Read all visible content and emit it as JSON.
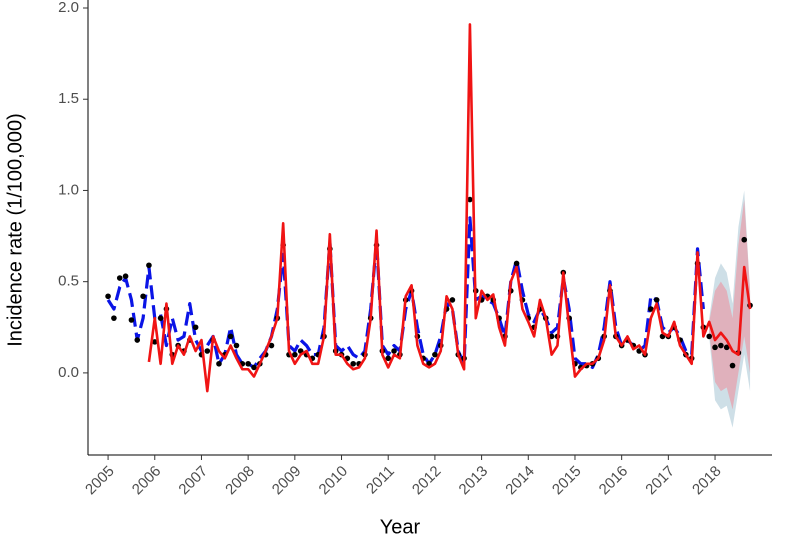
{
  "chart_data": {
    "type": "line",
    "x_label": "Year",
    "y_label": "Incidence rate (1/100,000)",
    "xlim": [
      2004.57,
      2019.22
    ],
    "ylim": [
      -0.45,
      2.0
    ],
    "xticks": [
      2005,
      2006,
      2007,
      2008,
      2009,
      2010,
      2011,
      2012,
      2013,
      2014,
      2015,
      2016,
      2017,
      2018
    ],
    "yticks": [
      {
        "value": 0,
        "label": "0.0"
      },
      {
        "value": 0.5,
        "label": "0.5"
      },
      {
        "value": 1,
        "label": "1.0"
      },
      {
        "value": 1.5,
        "label": "1.5"
      },
      {
        "value": 2,
        "label": "2.0"
      }
    ],
    "grid": false,
    "x": [
      2005,
      2005.125,
      2005.25,
      2005.375,
      2005.5,
      2005.625,
      2005.75,
      2005.875,
      2006,
      2006.125,
      2006.25,
      2006.375,
      2006.5,
      2006.625,
      2006.75,
      2006.875,
      2007,
      2007.125,
      2007.25,
      2007.375,
      2007.5,
      2007.625,
      2007.75,
      2007.875,
      2008,
      2008.125,
      2008.25,
      2008.375,
      2008.5,
      2008.625,
      2008.75,
      2008.875,
      2009,
      2009.125,
      2009.25,
      2009.375,
      2009.5,
      2009.625,
      2009.75,
      2009.875,
      2010,
      2010.125,
      2010.25,
      2010.375,
      2010.5,
      2010.625,
      2010.75,
      2010.875,
      2011,
      2011.125,
      2011.25,
      2011.375,
      2011.5,
      2011.625,
      2011.75,
      2011.875,
      2012,
      2012.125,
      2012.25,
      2012.375,
      2012.5,
      2012.625,
      2012.75,
      2012.875,
      2013,
      2013.125,
      2013.25,
      2013.375,
      2013.5,
      2013.625,
      2013.75,
      2013.875,
      2014,
      2014.125,
      2014.25,
      2014.375,
      2014.5,
      2014.625,
      2014.75,
      2014.875,
      2015,
      2015.125,
      2015.25,
      2015.375,
      2015.5,
      2015.625,
      2015.75,
      2015.875,
      2016,
      2016.125,
      2016.25,
      2016.375,
      2016.5,
      2016.625,
      2016.75,
      2016.875,
      2017,
      2017.125,
      2017.25,
      2017.375,
      2017.5,
      2017.625,
      2017.75,
      2017.875,
      2018,
      2018.125,
      2018.25,
      2018.375,
      2018.5,
      2018.625,
      2018.75
    ],
    "intervals": [
      {
        "color": "#c5d9e3",
        "x": [
          2017.875,
          2018,
          2018.125,
          2018.25,
          2018.375,
          2018.5,
          2018.625,
          2018.75
        ],
        "lower": [
          0.2,
          -0.15,
          -0.2,
          -0.18,
          -0.3,
          -0.1,
          0.1,
          -0.1
        ],
        "upper": [
          0.3,
          0.52,
          0.6,
          0.55,
          0.38,
          0.8,
          1.0,
          0.45
        ]
      },
      {
        "color": "#e3a9b4",
        "x": [
          2017.875,
          2018,
          2018.125,
          2018.25,
          2018.375,
          2018.5,
          2018.625,
          2018.75
        ],
        "lower": [
          0.22,
          -0.05,
          -0.1,
          -0.08,
          -0.2,
          0.0,
          0.2,
          0.0
        ],
        "upper": [
          0.28,
          0.45,
          0.5,
          0.45,
          0.3,
          0.7,
          0.95,
          0.45
        ]
      }
    ],
    "series": [
      {
        "style": "dashed",
        "color": "#0a14e6",
        "values": [
          0.4,
          0.35,
          0.47,
          0.52,
          0.4,
          0.18,
          0.3,
          0.58,
          0.3,
          0.32,
          0.15,
          0.3,
          0.18,
          0.2,
          0.38,
          0.18,
          0.12,
          0.15,
          0.2,
          0.05,
          0.1,
          0.25,
          0.1,
          0.05,
          0.05,
          0.03,
          0.08,
          0.12,
          0.2,
          0.35,
          0.65,
          0.15,
          0.12,
          0.18,
          0.15,
          0.1,
          0.1,
          0.25,
          0.72,
          0.15,
          0.12,
          0.15,
          0.1,
          0.08,
          0.12,
          0.35,
          0.72,
          0.15,
          0.1,
          0.15,
          0.12,
          0.35,
          0.45,
          0.25,
          0.1,
          0.05,
          0.1,
          0.2,
          0.38,
          0.35,
          0.12,
          0.05,
          0.85,
          0.4,
          0.42,
          0.4,
          0.38,
          0.3,
          0.2,
          0.5,
          0.62,
          0.45,
          0.32,
          0.28,
          0.35,
          0.3,
          0.22,
          0.25,
          0.52,
          0.35,
          0.08,
          0.05,
          0.05,
          0.03,
          0.1,
          0.25,
          0.5,
          0.25,
          0.15,
          0.18,
          0.15,
          0.12,
          0.15,
          0.42,
          0.4,
          0.25,
          0.22,
          0.25,
          0.2,
          0.12,
          0.1,
          0.68,
          0.35,
          null,
          null,
          null,
          null,
          null,
          null,
          null,
          null
        ]
      },
      {
        "style": "points",
        "color": "#000000",
        "values": [
          0.42,
          0.3,
          0.52,
          0.53,
          0.29,
          0.18,
          0.42,
          0.59,
          0.17,
          0.3,
          0.35,
          0.1,
          0.15,
          0.12,
          0.18,
          0.25,
          0.1,
          0.12,
          0.18,
          0.05,
          0.1,
          0.2,
          0.15,
          0.05,
          0.05,
          0.03,
          0.05,
          0.1,
          0.15,
          0.3,
          0.7,
          0.1,
          0.1,
          0.12,
          0.1,
          0.08,
          0.1,
          0.2,
          0.68,
          0.12,
          0.1,
          0.08,
          0.05,
          0.05,
          0.1,
          0.3,
          0.7,
          0.12,
          0.08,
          0.12,
          0.1,
          0.4,
          0.45,
          0.2,
          0.08,
          0.05,
          0.1,
          0.15,
          0.35,
          0.4,
          0.1,
          0.08,
          0.95,
          0.45,
          0.4,
          0.42,
          0.4,
          0.3,
          0.2,
          0.45,
          0.6,
          0.4,
          0.3,
          0.25,
          0.35,
          0.3,
          0.2,
          0.2,
          0.55,
          0.3,
          0.05,
          0.03,
          0.04,
          0.05,
          0.08,
          0.2,
          0.45,
          0.2,
          0.15,
          0.18,
          0.15,
          0.12,
          0.1,
          0.35,
          0.4,
          0.2,
          0.2,
          0.25,
          0.18,
          0.1,
          0.08,
          0.6,
          0.25,
          0.2,
          0.14,
          0.15,
          0.14,
          0.04,
          0.11,
          0.73,
          0.37
        ]
      },
      {
        "style": "solid",
        "color": "#f01414",
        "values": [
          null,
          null,
          null,
          null,
          null,
          null,
          null,
          0.06,
          0.3,
          0.05,
          0.38,
          0.05,
          0.15,
          0.1,
          0.2,
          0.12,
          0.18,
          -0.1,
          0.2,
          0.12,
          0.08,
          0.15,
          0.08,
          0.02,
          0.02,
          -0.02,
          0.05,
          0.12,
          0.2,
          0.3,
          0.82,
          0.12,
          0.05,
          0.1,
          0.12,
          0.05,
          0.05,
          0.2,
          0.76,
          0.1,
          0.1,
          0.05,
          0.02,
          0.03,
          0.08,
          0.3,
          0.78,
          0.1,
          0.03,
          0.1,
          0.08,
          0.42,
          0.48,
          0.15,
          0.05,
          0.03,
          0.05,
          0.12,
          0.42,
          0.35,
          0.1,
          0.02,
          1.91,
          0.3,
          0.45,
          0.4,
          0.43,
          0.25,
          0.15,
          0.5,
          0.58,
          0.35,
          0.28,
          0.2,
          0.4,
          0.3,
          0.1,
          0.15,
          0.55,
          0.25,
          -0.02,
          0.02,
          0.05,
          0.05,
          0.08,
          0.18,
          0.48,
          0.2,
          0.15,
          0.2,
          0.13,
          0.15,
          0.1,
          0.3,
          0.38,
          0.22,
          0.2,
          0.28,
          0.15,
          0.1,
          0.05,
          0.66,
          0.2,
          0.28,
          0.18,
          0.22,
          0.18,
          0.12,
          0.1,
          0.58,
          0.35
        ]
      }
    ]
  }
}
